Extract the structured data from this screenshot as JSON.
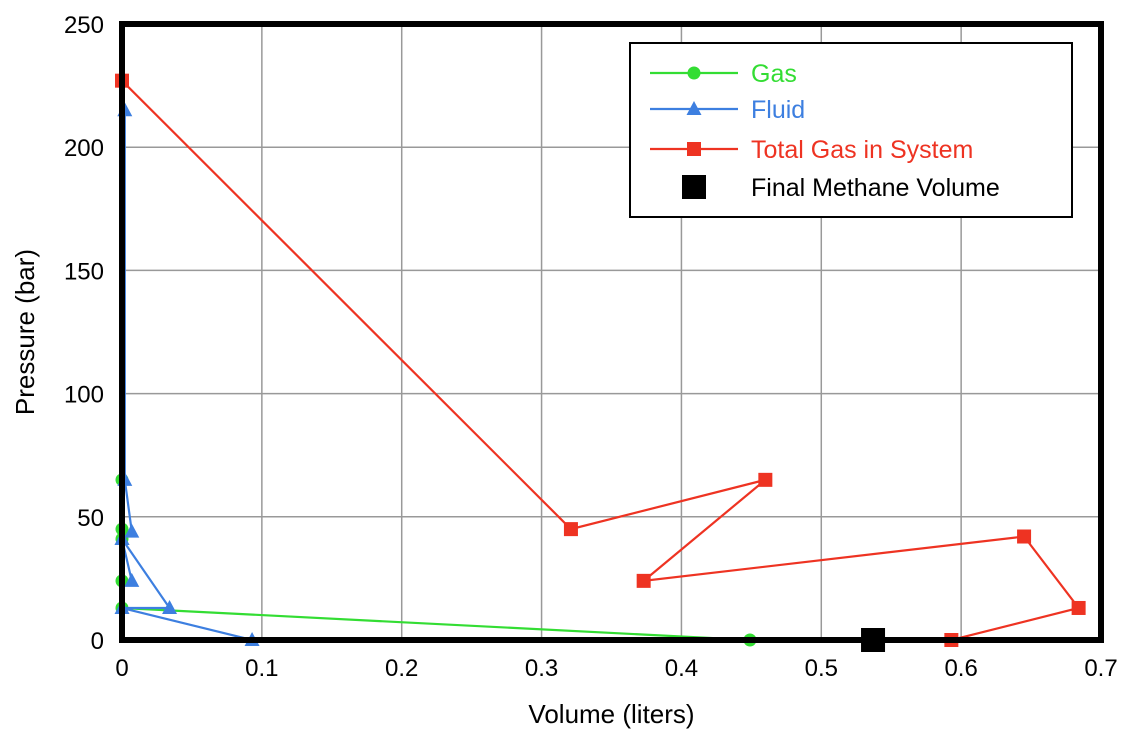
{
  "chart_data": {
    "type": "line",
    "title": "",
    "xlabel": "Volume (liters)",
    "ylabel": "Pressure (bar)",
    "xlim": [
      0,
      0.7
    ],
    "ylim": [
      0,
      250
    ],
    "xticks": [
      0,
      0.1,
      0.2,
      0.3,
      0.4,
      0.5,
      0.6,
      0.7
    ],
    "xtick_labels": [
      "0",
      "0.1",
      "0.2",
      "0.3",
      "0.4",
      "0.5",
      "0.6",
      "0.7"
    ],
    "yticks": [
      0,
      50,
      100,
      150,
      200,
      250
    ],
    "ytick_labels": [
      "0",
      "50",
      "100",
      "150",
      "200",
      "250"
    ],
    "grid": true,
    "legend_position": "top-right",
    "series": [
      {
        "name": "Gas",
        "color": "#33dd33",
        "marker": "circle",
        "x": [
          0.0,
          0.0,
          0.0,
          0.0,
          0.0,
          0.449
        ],
        "y": [
          65,
          45,
          41,
          24,
          13,
          0
        ]
      },
      {
        "name": "Fluid",
        "color": "#3d7fe0",
        "marker": "triangle",
        "x": [
          0.002,
          0.002,
          0.007,
          0.0,
          0.007,
          0.0,
          0.034,
          0.0,
          0.093
        ],
        "y": [
          215,
          65,
          44,
          41,
          24,
          41,
          13,
          13,
          0
        ]
      },
      {
        "name": "Total Gas in System",
        "color": "#ee3322",
        "marker": "square",
        "x": [
          0.0,
          0.321,
          0.46,
          0.373,
          0.645,
          0.684,
          0.593
        ],
        "y": [
          227,
          45,
          65,
          24,
          42,
          13,
          0
        ]
      },
      {
        "name": "Final Methane Volume",
        "color": "#000000",
        "marker": "big-square",
        "x": [
          0.537
        ],
        "y": [
          0
        ]
      }
    ]
  }
}
